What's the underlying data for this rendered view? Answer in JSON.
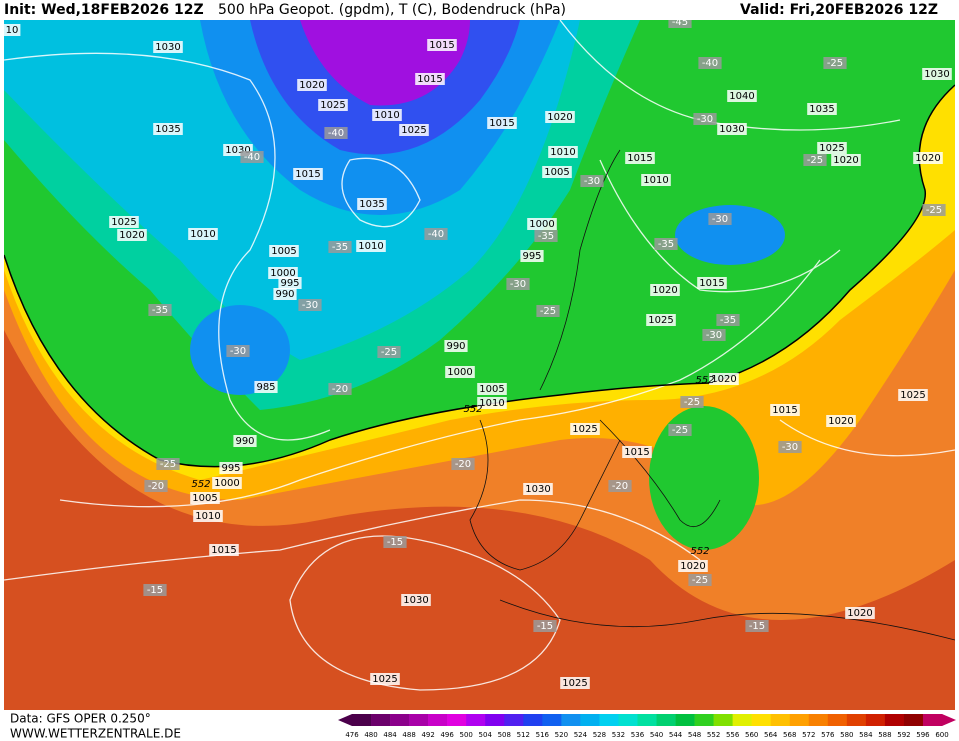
{
  "header": {
    "init": "Init: Wed,18FEB2026 12Z",
    "title": "500 hPa Geopot. (gpdm), T (C), Bodendruck (hPa)",
    "valid": "Valid: Fri,20FEB2026 12Z"
  },
  "footer": {
    "data": "Data: GFS OPER 0.250°",
    "site": "WWW.WETTERZENTRALE.DE"
  },
  "colorbar": {
    "levels": [
      476,
      480,
      484,
      488,
      492,
      496,
      500,
      504,
      508,
      512,
      516,
      520,
      524,
      528,
      532,
      536,
      540,
      544,
      548,
      552,
      556,
      560,
      564,
      568,
      572,
      576,
      580,
      584,
      588,
      592,
      596,
      600
    ],
    "colors": [
      "#4b004b",
      "#6b006b",
      "#8b008b",
      "#a800a8",
      "#c800c8",
      "#e000e0",
      "#b000f0",
      "#8000f0",
      "#5020f0",
      "#2040f0",
      "#1060f0",
      "#1090f0",
      "#00b0f0",
      "#00d0f0",
      "#00e0d0",
      "#00e0a0",
      "#00d070",
      "#00c040",
      "#30d020",
      "#80e000",
      "#e0f000",
      "#ffe000",
      "#ffc000",
      "#ffa000",
      "#f88000",
      "#f06000",
      "#e04000",
      "#d02000",
      "#b00000",
      "#900000",
      "#c00060"
    ]
  },
  "map": {
    "isobar_labels": [
      "1030",
      "1015",
      "1020",
      "1015",
      "1025",
      "1010",
      "1025",
      "1035",
      "1030",
      "1015",
      "1015",
      "1020",
      "1040",
      "1035",
      "1030",
      "1030",
      "1025",
      "1020",
      "1020",
      "1010",
      "1015",
      "1005",
      "1010",
      "1035",
      "1025",
      "1020",
      "1010",
      "1005",
      "1010",
      "1000",
      "995",
      "1000",
      "995",
      "990",
      "1020",
      "1015",
      "1025",
      "990",
      "1000",
      "985",
      "1005",
      "1010",
      "1020",
      "1025",
      "1015",
      "1020",
      "1025",
      "990",
      "1015",
      "995",
      "1000",
      "1005",
      "1010",
      "1030",
      "1015",
      "1020",
      "1030",
      "1020",
      "1025",
      "1025",
      "10"
    ],
    "temp_labels": [
      "-40",
      "-25",
      "-30",
      "-40",
      "-40",
      "-25",
      "-30",
      "-30",
      "-25",
      "-40",
      "-35",
      "-35",
      "-35",
      "-30",
      "-35",
      "-30",
      "-25",
      "-35",
      "-30",
      "-30",
      "-25",
      "-20",
      "-25",
      "-25",
      "-30",
      "-20",
      "-25",
      "-20",
      "-20",
      "-15",
      "-25",
      "-15",
      "-15",
      "-15",
      "-45"
    ],
    "height_labels": [
      "552",
      "552",
      "552",
      "552"
    ]
  }
}
